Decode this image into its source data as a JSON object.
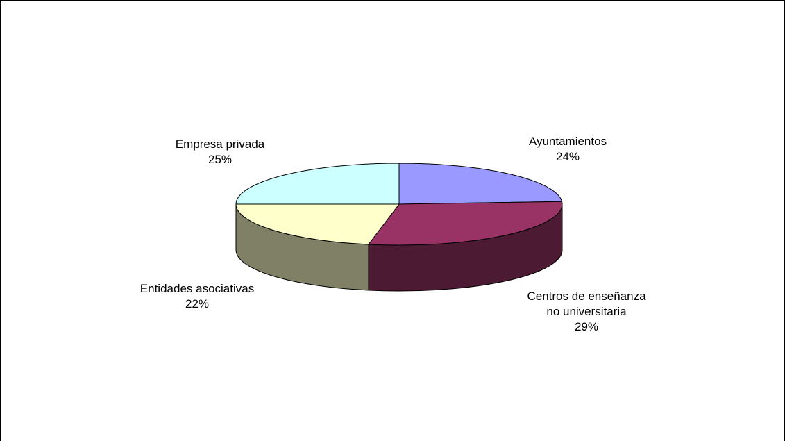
{
  "chart_data": {
    "type": "pie3d",
    "categories": [
      "Ayuntamientos",
      "Centros de enseñanza no universitaria",
      "Entidades asociativas",
      "Empresa privada"
    ],
    "values": [
      24,
      29,
      22,
      25
    ],
    "value_labels": [
      "24%",
      "29%",
      "22%",
      "25%"
    ],
    "colors": [
      "#9999ff",
      "#993366",
      "#ffffcc",
      "#ccffff"
    ]
  }
}
